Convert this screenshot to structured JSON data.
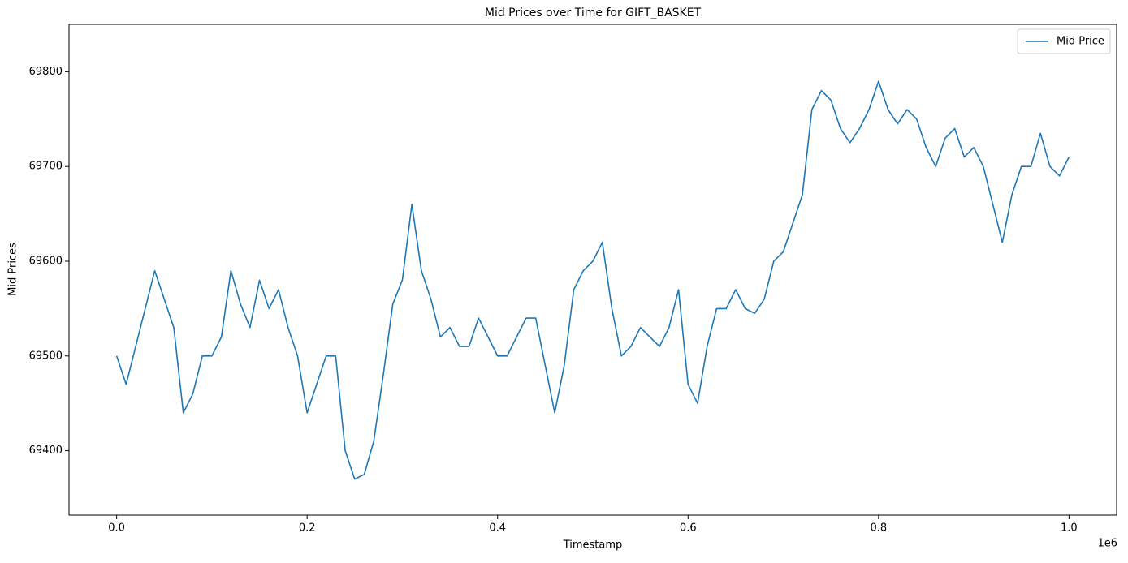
{
  "chart_data": {
    "type": "line",
    "title": "Mid Prices over Time for GIFT_BASKET",
    "x_label": "Timestamp",
    "y_label": "Mid Prices",
    "x_offset_label": "1e6",
    "x": [
      0,
      0.01,
      0.02,
      0.03,
      0.04,
      0.05,
      0.06,
      0.07,
      0.08,
      0.09,
      0.1,
      0.11,
      0.12,
      0.13,
      0.14,
      0.15,
      0.16,
      0.17,
      0.18,
      0.19,
      0.2,
      0.21,
      0.22,
      0.23,
      0.24,
      0.25,
      0.26,
      0.27,
      0.28,
      0.29,
      0.3,
      0.31,
      0.32,
      0.33,
      0.34,
      0.35,
      0.36,
      0.37,
      0.38,
      0.39,
      0.4,
      0.41,
      0.42,
      0.43,
      0.44,
      0.45,
      0.46,
      0.47,
      0.48,
      0.49,
      0.5,
      0.51,
      0.52,
      0.53,
      0.54,
      0.55,
      0.56,
      0.57,
      0.58,
      0.59,
      0.6,
      0.61,
      0.62,
      0.63,
      0.64,
      0.65,
      0.66,
      0.67,
      0.68,
      0.69,
      0.7,
      0.71,
      0.72,
      0.73,
      0.74,
      0.75,
      0.76,
      0.77,
      0.78,
      0.79,
      0.8,
      0.81,
      0.82,
      0.83,
      0.84,
      0.85,
      0.86,
      0.87,
      0.88,
      0.89,
      0.9,
      0.91,
      0.92,
      0.93,
      0.94,
      0.95,
      0.96,
      0.97,
      0.98,
      0.99,
      1.0
    ],
    "series": [
      {
        "name": "Mid Price",
        "color": "#1f77b4",
        "values": [
          69500,
          69470,
          69510,
          69550,
          69590,
          69560,
          69530,
          69440,
          69460,
          69500,
          69500,
          69520,
          69590,
          69555,
          69530,
          69580,
          69550,
          69570,
          69530,
          69500,
          69440,
          69470,
          69500,
          69500,
          69400,
          69370,
          69375,
          69410,
          69480,
          69555,
          69580,
          69660,
          69590,
          69560,
          69520,
          69530,
          69510,
          69510,
          69540,
          69520,
          69500,
          69500,
          69520,
          69540,
          69540,
          69490,
          69440,
          69490,
          69570,
          69590,
          69600,
          69620,
          69550,
          69500,
          69510,
          69530,
          69520,
          69510,
          69530,
          69570,
          69470,
          69450,
          69510,
          69550,
          69550,
          69570,
          69550,
          69545,
          69560,
          69600,
          69610,
          69640,
          69670,
          69760,
          69780,
          69770,
          69740,
          69725,
          69740,
          69760,
          69790,
          69760,
          69745,
          69760,
          69750,
          69720,
          69700,
          69730,
          69740,
          69710,
          69720,
          69700,
          69660,
          69620,
          69670,
          69700,
          69700,
          69735,
          69700,
          69690,
          69710
        ]
      }
    ],
    "xlim": [
      -0.05,
      1.05
    ],
    "ylim": [
      69332,
      69850
    ],
    "xticks": [
      {
        "value": 0,
        "label": "0.0"
      },
      0.2,
      0.4,
      0.6,
      0.8,
      {
        "value": 1,
        "label": "1.0"
      }
    ],
    "yticks": [
      69400,
      69500,
      69600,
      69700,
      69800
    ],
    "grid": false,
    "legend": "upper right"
  }
}
